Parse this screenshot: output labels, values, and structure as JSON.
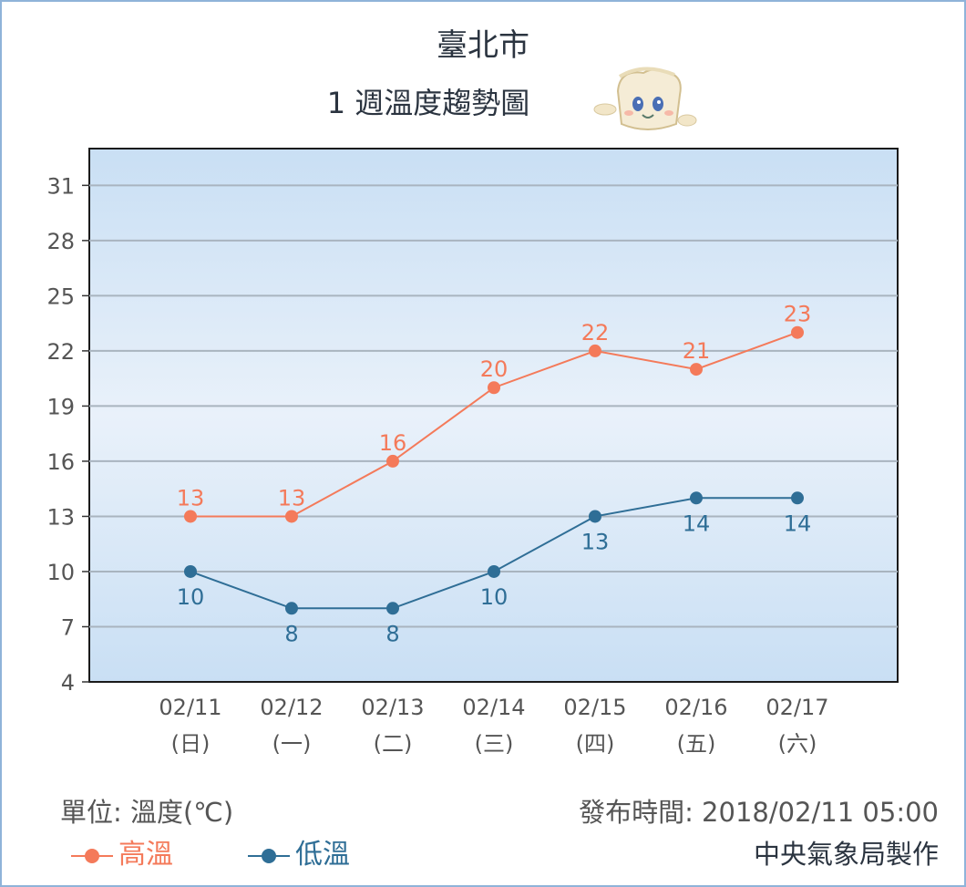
{
  "title": "臺北市",
  "subtitle": "1 週溫度趨勢圖",
  "footer": {
    "unit": "單位: 溫度(℃)",
    "issued": "發布時間: 2018/02/11 05:00",
    "producer": "中央氣象局製作"
  },
  "colors": {
    "high": "#f47a5a",
    "low": "#2f6e96",
    "plot_bg_top": "#c9dff4",
    "plot_bg_mid": "#e9f1fa",
    "grid": "#a9b4bf"
  },
  "mascot_icon": "weather-mascot-icon",
  "chart_data": {
    "type": "line",
    "categories": [
      "02/11",
      "02/12",
      "02/13",
      "02/14",
      "02/15",
      "02/16",
      "02/17"
    ],
    "weekdays": [
      "(日)",
      "(一)",
      "(二)",
      "(三)",
      "(四)",
      "(五)",
      "(六)"
    ],
    "series": [
      {
        "name": "高溫",
        "values": [
          13,
          13,
          16,
          20,
          22,
          21,
          23
        ]
      },
      {
        "name": "低溫",
        "values": [
          10,
          8,
          8,
          10,
          13,
          14,
          14
        ]
      }
    ],
    "yticks": [
      4,
      7,
      10,
      13,
      16,
      19,
      22,
      25,
      28,
      31
    ],
    "ylim": [
      4,
      33
    ],
    "grid": true,
    "legend": "bottom-left"
  }
}
